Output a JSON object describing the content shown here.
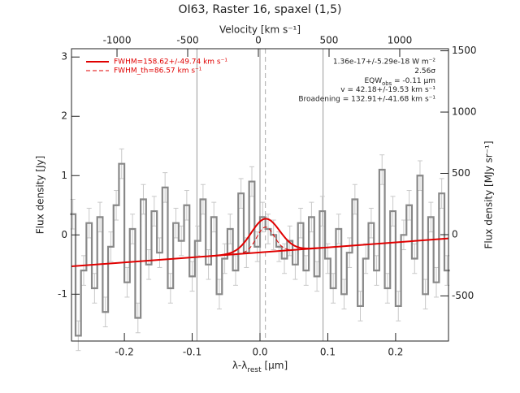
{
  "chart_data": {
    "type": "line",
    "title": "OI63, Raster 16, spaxel (1,5)",
    "xlabel": [
      "λ-λ",
      "rest",
      " [μm]"
    ],
    "ylabel": "Flux density [Jy]",
    "x2label": "Velocity [km s⁻¹]",
    "y2label": "Flux density [MJy sr⁻¹]",
    "xlim": [
      -0.278,
      0.278
    ],
    "ylim": [
      -1.79,
      3.14
    ],
    "x2lim": [
      -1322,
      1345
    ],
    "y2lim": [
      -868,
      1517
    ],
    "xticks": [
      -0.2,
      -0.1,
      {
        "value": 0,
        "label": "0.0"
      },
      0.1,
      0.2
    ],
    "yticks": [
      -1,
      0,
      1,
      2,
      3
    ],
    "x2ticks": [
      -1000,
      -500,
      0,
      500,
      1000
    ],
    "y2ticks": [
      -500,
      0,
      500,
      1000,
      1500
    ],
    "vlines": [
      -0.093,
      0,
      0.093
    ],
    "center_line": 0.008,
    "series": [
      {
        "color": "#888888",
        "step": 0.008,
        "x": [
          -0.276,
          -0.268,
          -0.26,
          -0.252,
          -0.244,
          -0.236,
          -0.228,
          -0.22,
          -0.212,
          -0.204,
          -0.196,
          -0.188,
          -0.18,
          -0.172,
          -0.164,
          -0.156,
          -0.148,
          -0.14,
          -0.132,
          -0.124,
          -0.116,
          -0.108,
          -0.1,
          -0.092,
          -0.084,
          -0.076,
          -0.068,
          -0.06,
          -0.052,
          -0.044,
          -0.036,
          -0.028,
          -0.02,
          -0.012,
          -0.004,
          0.004,
          0.012,
          0.02,
          0.028,
          0.036,
          0.044,
          0.052,
          0.06,
          0.068,
          0.076,
          0.084,
          0.092,
          0.1,
          0.108,
          0.116,
          0.124,
          0.132,
          0.14,
          0.148,
          0.156,
          0.164,
          0.172,
          0.18,
          0.188,
          0.196,
          0.204,
          0.212,
          0.22,
          0.228,
          0.236,
          0.244,
          0.252,
          0.26,
          0.268,
          0.276
        ],
        "values": [
          0.35,
          -1.7,
          -0.6,
          0.2,
          -0.9,
          0.3,
          -1.3,
          -0.2,
          0.5,
          1.2,
          -0.8,
          0.1,
          -1.4,
          0.6,
          -0.5,
          0.4,
          -0.3,
          0.8,
          -0.9,
          0.2,
          -0.1,
          0.5,
          -0.7,
          -0.1,
          0.6,
          -0.5,
          0.3,
          -1.0,
          -0.4,
          0.1,
          -0.6,
          0.7,
          -0.3,
          0.9,
          -0.2,
          0.3,
          0.1,
          0.0,
          -0.2,
          -0.4,
          -0.1,
          -0.5,
          0.2,
          -0.6,
          0.3,
          -0.7,
          0.4,
          -0.4,
          -0.9,
          0.1,
          -1.0,
          -0.3,
          0.6,
          -1.2,
          -0.4,
          0.2,
          -0.6,
          1.1,
          -0.9,
          0.4,
          -1.2,
          0.0,
          0.5,
          -0.4,
          1.0,
          -1.0,
          0.3,
          -0.8,
          0.7,
          -0.6
        ],
        "errors": [
          0.25,
          0.25,
          0.25,
          0.25,
          0.25,
          0.25,
          0.25,
          0.25,
          0.25,
          0.25,
          0.25,
          0.25,
          0.25,
          0.25,
          0.25,
          0.25,
          0.25,
          0.25,
          0.25,
          0.25,
          0.25,
          0.25,
          0.25,
          0.25,
          0.25,
          0.25,
          0.25,
          0.25,
          0.25,
          0.25,
          0.25,
          0.25,
          0.25,
          0.25,
          0.25,
          0.25,
          0.25,
          0.25,
          0.25,
          0.25,
          0.25,
          0.25,
          0.25,
          0.25,
          0.25,
          0.25,
          0.25,
          0.25,
          0.25,
          0.25,
          0.25,
          0.25,
          0.25,
          0.25,
          0.25,
          0.25,
          0.25,
          0.25,
          0.25,
          0.25,
          0.25,
          0.25,
          0.25,
          0.25,
          0.25,
          0.25,
          0.25,
          0.25,
          0.25,
          0.25
        ]
      }
    ],
    "fit": {
      "color": "#e00000",
      "baseline_x": [
        -0.278,
        0.278
      ],
      "baseline_y": [
        -0.53,
        -0.06
      ],
      "center": 0.008,
      "amplitude": 0.56,
      "sigma": 0.021,
      "amplitude_th": 0.42,
      "sigma_th": 0.013
    },
    "legend": [
      "FWHM=158.62+/-49.74 km s⁻¹",
      "FWHM_th=86.57 km s⁻¹"
    ],
    "annotations": [
      "1.36e-17+/-5.29e-18 W m⁻²",
      "2.56σ",
      [
        "EQW",
        "obs",
        " = -0.11 μm"
      ],
      "v = 42.18+/-19.53 km s⁻¹",
      "Broadening = 132.91+/-41.68 km s⁻¹"
    ]
  }
}
